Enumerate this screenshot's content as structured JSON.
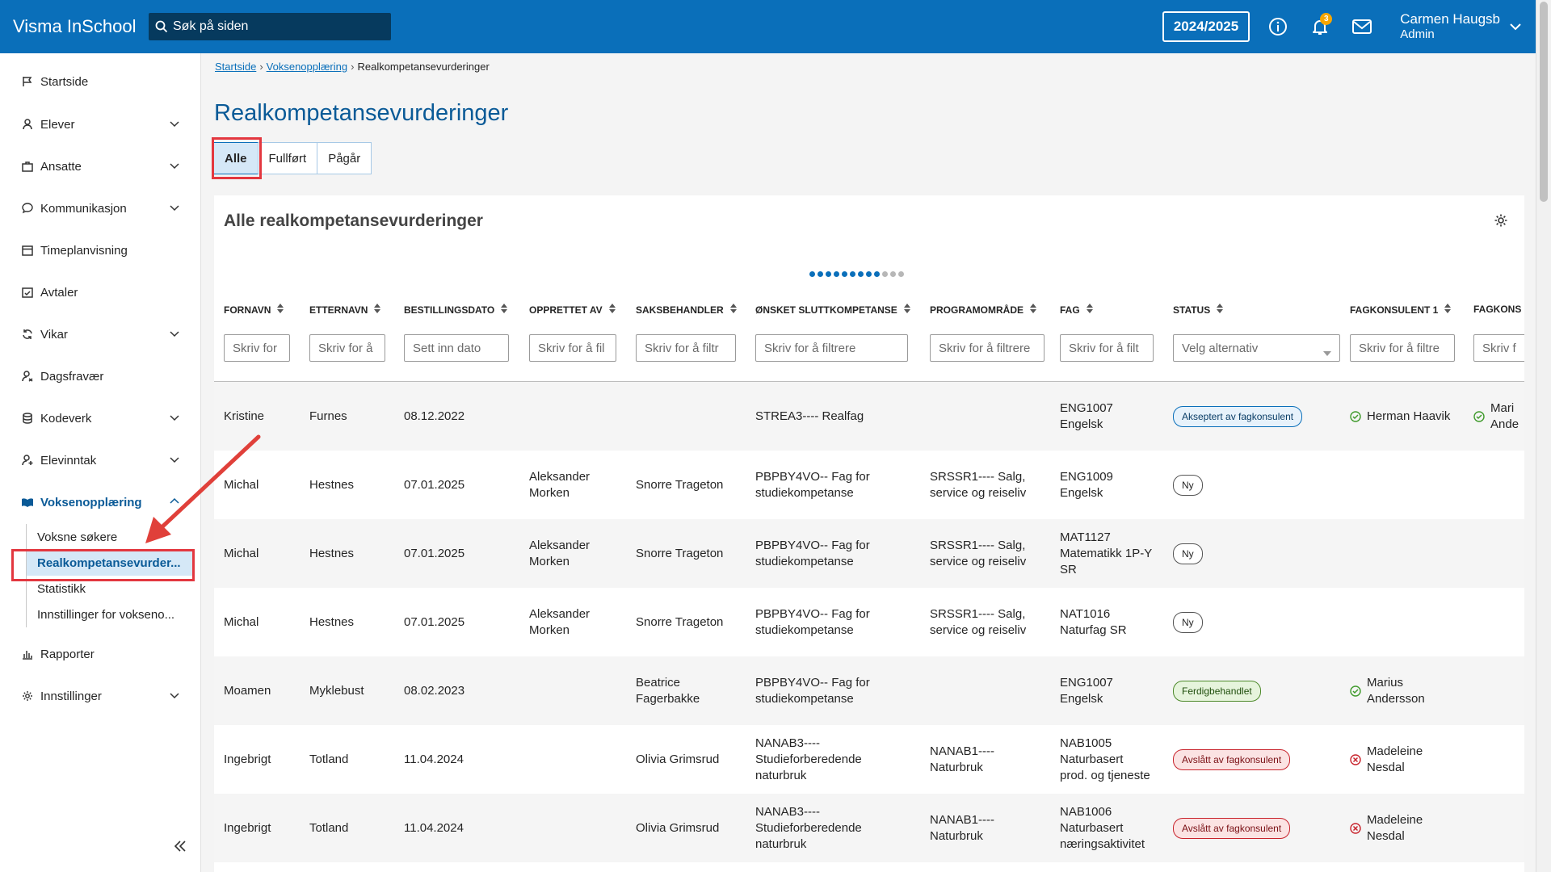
{
  "app": {
    "title": "Visma InSchool",
    "search_placeholder": "Søk på siden",
    "school_year": "2024/2025",
    "notification_count": "3",
    "user_name": "Carmen Haugsb",
    "user_role": "Admin"
  },
  "sidebar": {
    "items": [
      {
        "label": "Startside",
        "icon": "flag-icon"
      },
      {
        "label": "Elever",
        "icon": "student-icon"
      },
      {
        "label": "Ansatte",
        "icon": "briefcase-icon"
      },
      {
        "label": "Kommunikasjon",
        "icon": "chat-icon"
      },
      {
        "label": "Timeplanvisning",
        "icon": "calendar-icon"
      },
      {
        "label": "Avtaler",
        "icon": "calendar-check-icon"
      },
      {
        "label": "Vikar",
        "icon": "refresh-icon"
      },
      {
        "label": "Dagsfravær",
        "icon": "user-absence-icon"
      },
      {
        "label": "Kodeverk",
        "icon": "database-icon"
      },
      {
        "label": "Elevinntak",
        "icon": "user-add-icon"
      },
      {
        "label": "Voksenopplæring",
        "icon": "book-open-icon"
      },
      {
        "label": "Rapporter",
        "icon": "bar-chart-icon"
      },
      {
        "label": "Innstillinger",
        "icon": "gear-icon"
      }
    ],
    "sub_items": [
      {
        "label": "Voksne søkere"
      },
      {
        "label": "Realkompetansevurder..."
      },
      {
        "label": "Statistikk"
      },
      {
        "label": "Innstillinger for voksenо..."
      }
    ]
  },
  "breadcrumb": {
    "home": "Startside",
    "section": "Voksenopplæring",
    "current": "Realkompetansevurderinger"
  },
  "page": {
    "title": "Realkompetansevurderinger",
    "tabs": [
      {
        "label": "Alle"
      },
      {
        "label": "Fullført"
      },
      {
        "label": "Pågår"
      }
    ]
  },
  "table": {
    "title": "Alle realkompetansevurderinger",
    "pagination": {
      "total_dots": 12,
      "active_dots": 9
    },
    "columns": [
      {
        "label": "FORNAVN",
        "filter": "Skriv for"
      },
      {
        "label": "ETTERNAVN",
        "filter": "Skriv for å"
      },
      {
        "label": "BESTILLINGSDATO",
        "filter": "Sett inn dato"
      },
      {
        "label": "OPPRETTET AV",
        "filter": "Skriv for å fil"
      },
      {
        "label": "SAKSBEHANDLER",
        "filter": "Skriv for å filtr"
      },
      {
        "label": "ØNSKET SLUTTKOMPETANSE",
        "filter": "Skriv for å filtrere"
      },
      {
        "label": "PROGRAMOMRÅDE",
        "filter": "Skriv for å filtrere"
      },
      {
        "label": "FAG",
        "filter": "Skriv for å filt"
      },
      {
        "label": "STATUS",
        "filter": "Velg alternativ"
      },
      {
        "label": "FAGKONSULENT 1",
        "filter": "Skriv for å filtre"
      },
      {
        "label": "FAGKONS",
        "filter": "Skriv f"
      }
    ],
    "rows": [
      {
        "fornavn": "Kristine",
        "etternavn": "Furnes",
        "dato": "08.12.2022",
        "opprettet": "",
        "saksbehandler": "",
        "sluttkompetanse": "STREA3---- Realfag",
        "programomrade": "",
        "fag": "ENG1007\nEngelsk",
        "status": "Akseptert av fagkonsulent",
        "status_type": "blue",
        "fk1": "Herman Haavik",
        "fk1_icon": "check",
        "fk2": "Mari\nAnde",
        "fk2_icon": "check"
      },
      {
        "fornavn": "Michal",
        "etternavn": "Hestnes",
        "dato": "07.01.2025",
        "opprettet": "Aleksander\nMorken",
        "saksbehandler": "Snorre Trageton",
        "sluttkompetanse": "PBPBY4VO-- Fag for\nstudiekompetanse",
        "programomrade": "SRSSR1---- Salg,\nservice og reiseliv",
        "fag": "ENG1009\nEngelsk",
        "status": "Ny",
        "status_type": "new",
        "fk1": "",
        "fk1_icon": "",
        "fk2": "",
        "fk2_icon": ""
      },
      {
        "fornavn": "Michal",
        "etternavn": "Hestnes",
        "dato": "07.01.2025",
        "opprettet": "Aleksander\nMorken",
        "saksbehandler": "Snorre Trageton",
        "sluttkompetanse": "PBPBY4VO-- Fag for\nstudiekompetanse",
        "programomrade": "SRSSR1---- Salg,\nservice og reiseliv",
        "fag": "MAT1127\nMatematikk 1P-Y\nSR",
        "status": "Ny",
        "status_type": "new",
        "fk1": "",
        "fk1_icon": "",
        "fk2": "",
        "fk2_icon": ""
      },
      {
        "fornavn": "Michal",
        "etternavn": "Hestnes",
        "dato": "07.01.2025",
        "opprettet": "Aleksander\nMorken",
        "saksbehandler": "Snorre Trageton",
        "sluttkompetanse": "PBPBY4VO-- Fag for\nstudiekompetanse",
        "programomrade": "SRSSR1---- Salg,\nservice og reiseliv",
        "fag": "NAT1016\nNaturfag SR",
        "status": "Ny",
        "status_type": "new",
        "fk1": "",
        "fk1_icon": "",
        "fk2": "",
        "fk2_icon": ""
      },
      {
        "fornavn": "Moamen",
        "etternavn": "Myklebust",
        "dato": "08.02.2023",
        "opprettet": "",
        "saksbehandler": "Beatrice\nFagerbakke",
        "sluttkompetanse": "PBPBY4VO-- Fag for\nstudiekompetanse",
        "programomrade": "",
        "fag": "ENG1007\nEngelsk",
        "status": "Ferdigbehandlet",
        "status_type": "green",
        "fk1": "Marius\nAndersson",
        "fk1_icon": "check",
        "fk2": "",
        "fk2_icon": ""
      },
      {
        "fornavn": "Ingebrigt",
        "etternavn": "Totland",
        "dato": "11.04.2024",
        "opprettet": "",
        "saksbehandler": "Olivia Grimsrud",
        "sluttkompetanse": "NANAB3----\nStudieforberedende\nnaturbruk",
        "programomrade": "NANAB1----\nNaturbruk",
        "fag": "NAB1005\nNaturbasert\nprod. og tjeneste",
        "status": "Avslått av fagkonsulent",
        "status_type": "red",
        "fk1": "Madeleine\nNesdal",
        "fk1_icon": "cross",
        "fk2": "",
        "fk2_icon": ""
      },
      {
        "fornavn": "Ingebrigt",
        "etternavn": "Totland",
        "dato": "11.04.2024",
        "opprettet": "",
        "saksbehandler": "Olivia Grimsrud",
        "sluttkompetanse": "NANAB3----\nStudieforberedende\nnaturbruk",
        "programomrade": "NANAB1----\nNaturbruk",
        "fag": "NAB1006\nNaturbasert\nnæringsaktivitet",
        "status": "Avslått av fagkonsulent",
        "status_type": "red",
        "fk1": "Madeleine\nNesdal",
        "fk1_icon": "cross",
        "fk2": "",
        "fk2_icon": ""
      }
    ]
  },
  "colors": {
    "topbar": "#0a6fba",
    "accent": "#0a5a97",
    "highlight": "#e3373f"
  }
}
